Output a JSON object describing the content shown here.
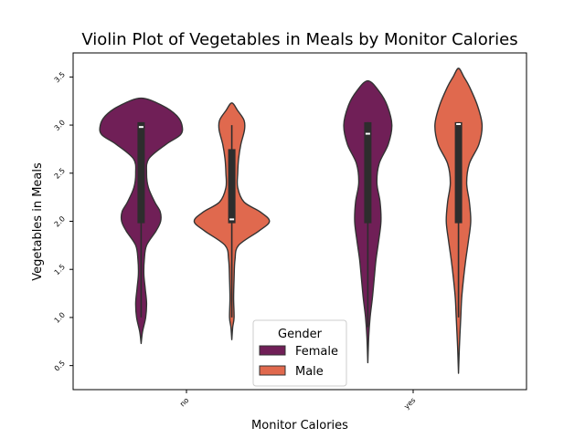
{
  "chart_data": {
    "type": "violin",
    "title": "Violin Plot of Vegetables in Meals by Monitor Calories",
    "xlabel": "Monitor Calories",
    "ylabel": "Vegetables in Meals",
    "categories": [
      "no",
      "yes"
    ],
    "ylim": [
      0.25,
      3.75
    ],
    "yticks": [
      0.5,
      1.0,
      1.5,
      2.0,
      2.5,
      3.0,
      3.5
    ],
    "ytick_labels": [
      "0.5",
      "1.0",
      "1.5",
      "2.0",
      "2.5",
      "3.0",
      "3.5"
    ],
    "legend": {
      "title": "Gender",
      "placement": "lower-center"
    },
    "series": [
      {
        "name": "Female",
        "color": "#701f57",
        "groups": [
          {
            "category": "no",
            "min": 0.73,
            "max": 3.28,
            "q1": 1.98,
            "median": 2.98,
            "q3": 3.03,
            "whisker_low": 1.0,
            "whisker_high": 3.03,
            "density": [
              [
                0.73,
                0.0
              ],
              [
                0.85,
                0.03
              ],
              [
                1.0,
                0.1
              ],
              [
                1.15,
                0.12
              ],
              [
                1.3,
                0.09
              ],
              [
                1.45,
                0.06
              ],
              [
                1.6,
                0.07
              ],
              [
                1.75,
                0.12
              ],
              [
                1.9,
                0.33
              ],
              [
                2.0,
                0.43
              ],
              [
                2.1,
                0.42
              ],
              [
                2.2,
                0.3
              ],
              [
                2.35,
                0.16
              ],
              [
                2.5,
                0.12
              ],
              [
                2.65,
                0.17
              ],
              [
                2.8,
                0.55
              ],
              [
                2.9,
                0.87
              ],
              [
                3.0,
                0.9
              ],
              [
                3.1,
                0.78
              ],
              [
                3.2,
                0.48
              ],
              [
                3.28,
                0.0
              ]
            ]
          },
          {
            "category": "yes",
            "min": 0.53,
            "max": 3.46,
            "q1": 1.98,
            "median": 2.91,
            "q3": 3.03,
            "whisker_low": 0.9,
            "whisker_high": 3.03,
            "density": [
              [
                0.53,
                0.0
              ],
              [
                0.8,
                0.02
              ],
              [
                1.0,
                0.05
              ],
              [
                1.2,
                0.1
              ],
              [
                1.4,
                0.14
              ],
              [
                1.6,
                0.18
              ],
              [
                1.8,
                0.24
              ],
              [
                2.0,
                0.29
              ],
              [
                2.2,
                0.27
              ],
              [
                2.4,
                0.2
              ],
              [
                2.6,
                0.25
              ],
              [
                2.8,
                0.45
              ],
              [
                3.0,
                0.53
              ],
              [
                3.2,
                0.43
              ],
              [
                3.35,
                0.25
              ],
              [
                3.46,
                0.0
              ]
            ]
          }
        ]
      },
      {
        "name": "Male",
        "color": "#e0694e",
        "groups": [
          {
            "category": "no",
            "min": 0.77,
            "max": 3.23,
            "q1": 1.98,
            "median": 2.02,
            "q3": 2.75,
            "whisker_low": 1.0,
            "whisker_high": 3.0,
            "density": [
              [
                0.77,
                0.0
              ],
              [
                0.9,
                0.02
              ],
              [
                1.0,
                0.05
              ],
              [
                1.2,
                0.04
              ],
              [
                1.4,
                0.05
              ],
              [
                1.6,
                0.07
              ],
              [
                1.75,
                0.15
              ],
              [
                1.9,
                0.6
              ],
              [
                2.0,
                0.83
              ],
              [
                2.1,
                0.62
              ],
              [
                2.2,
                0.27
              ],
              [
                2.35,
                0.13
              ],
              [
                2.5,
                0.13
              ],
              [
                2.65,
                0.15
              ],
              [
                2.8,
                0.2
              ],
              [
                2.95,
                0.28
              ],
              [
                3.05,
                0.27
              ],
              [
                3.15,
                0.13
              ],
              [
                3.23,
                0.0
              ]
            ]
          },
          {
            "category": "yes",
            "min": 0.42,
            "max": 3.59,
            "q1": 1.98,
            "median": 3.01,
            "q3": 3.03,
            "whisker_low": 1.0,
            "whisker_high": 3.03,
            "density": [
              [
                0.42,
                0.0
              ],
              [
                0.7,
                0.02
              ],
              [
                1.0,
                0.05
              ],
              [
                1.2,
                0.07
              ],
              [
                1.4,
                0.11
              ],
              [
                1.6,
                0.16
              ],
              [
                1.8,
                0.22
              ],
              [
                2.0,
                0.27
              ],
              [
                2.2,
                0.24
              ],
              [
                2.4,
                0.18
              ],
              [
                2.6,
                0.24
              ],
              [
                2.8,
                0.45
              ],
              [
                3.0,
                0.52
              ],
              [
                3.2,
                0.42
              ],
              [
                3.4,
                0.24
              ],
              [
                3.5,
                0.12
              ],
              [
                3.59,
                0.0
              ]
            ]
          }
        ]
      }
    ]
  }
}
